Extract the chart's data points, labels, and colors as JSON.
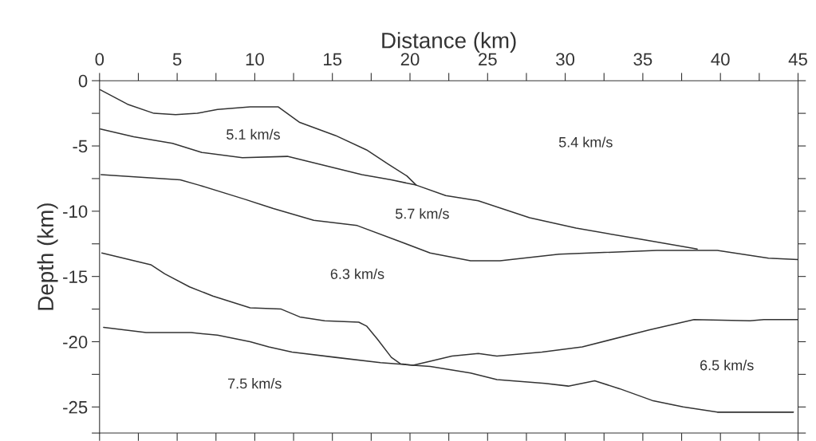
{
  "chart_data": {
    "type": "line",
    "xlabel": "Distance (km)",
    "ylabel": "Depth (km)",
    "xlim": [
      0,
      45
    ],
    "ylim": [
      -27,
      0
    ],
    "xticks": [
      0,
      {
        "value": 2.5,
        "label": null
      },
      5,
      {
        "value": 7.5,
        "label": null
      },
      10,
      {
        "value": 12.5,
        "label": null
      },
      15,
      {
        "value": 17.5,
        "label": null
      },
      20,
      {
        "value": 22.5,
        "label": null
      },
      25,
      {
        "value": 27.5,
        "label": null
      },
      30,
      {
        "value": 32.5,
        "label": null
      },
      35,
      {
        "value": 37.5,
        "label": null
      },
      40,
      {
        "value": 42.5,
        "label": null
      },
      45
    ],
    "yticks": [
      {
        "value": -27,
        "label": null
      },
      -25,
      {
        "value": -22.5,
        "label": null
      },
      -20,
      {
        "value": -17.5,
        "label": null
      },
      -15,
      {
        "value": -12.5,
        "label": null
      },
      -10,
      {
        "value": -7.5,
        "label": null
      },
      -5,
      {
        "value": -2.5,
        "label": null
      },
      0
    ],
    "grid": false,
    "marker": "none",
    "line_style": "solid",
    "series": [
      {
        "color": "#333333",
        "x": [
          0.05,
          1.8,
          3.5,
          4.9,
          6.3,
          7.6,
          9.7,
          11.5,
          12.9,
          15.2,
          17.2,
          18.6,
          19.8,
          20.4
        ],
        "values": [
          -0.7,
          -1.8,
          -2.5,
          -2.6,
          -2.5,
          -2.2,
          -2.0,
          -2.0,
          -3.2,
          -4.2,
          -5.3,
          -6.4,
          -7.3,
          -8.0
        ]
      },
      {
        "color": "#333333",
        "x": [
          0.05,
          2.2,
          4.7,
          6.6,
          9.2,
          12.1,
          14.5,
          16.9,
          18.8,
          20.4,
          22.3,
          24.4,
          27.7,
          30.7,
          35.1,
          38.5
        ],
        "values": [
          -3.7,
          -4.3,
          -4.8,
          -5.5,
          -5.9,
          -5.8,
          -6.5,
          -7.2,
          -7.6,
          -8.0,
          -8.8,
          -9.2,
          -10.5,
          -11.3,
          -12.2,
          -12.9
        ]
      },
      {
        "color": "#333333",
        "x": [
          0.1,
          5.2,
          6.4,
          9.4,
          11.2,
          13.8,
          16.6,
          19.3,
          21.3,
          23.9,
          25.8,
          29.6,
          35.9,
          39.8,
          43.1,
          45
        ],
        "values": [
          -7.2,
          -7.6,
          -8.0,
          -9.1,
          -9.8,
          -10.7,
          -11.1,
          -12.3,
          -13.2,
          -13.8,
          -13.8,
          -13.3,
          -13.0,
          -13.0,
          -13.6,
          -13.7
        ]
      },
      {
        "color": "#333333",
        "x": [
          0.15,
          3.3,
          4.2,
          5.8,
          7.3,
          9.7,
          11.7,
          12.9,
          14.5,
          16.7,
          17.2,
          17.9,
          18.8,
          19.4,
          20.2,
          21.3,
          22.7,
          24.4,
          25.6,
          28.5,
          31.1,
          35.4,
          38.3,
          41.9,
          42.8,
          45
        ],
        "values": [
          -13.2,
          -14.1,
          -14.8,
          -15.8,
          -16.5,
          -17.4,
          -17.5,
          -18.1,
          -18.4,
          -18.5,
          -18.8,
          -19.8,
          -21.2,
          -21.7,
          -21.8,
          -21.5,
          -21.1,
          -20.9,
          -21.1,
          -20.8,
          -20.4,
          -19.1,
          -18.3,
          -18.4,
          -18.3,
          -18.3
        ]
      },
      {
        "color": "#333333",
        "x": [
          0.26,
          3.0,
          5.9,
          7.6,
          9.7,
          10.9,
          12.4,
          15.2,
          18.1,
          20.2,
          21.3,
          23.9,
          25.6,
          28.7,
          30.2,
          31.9,
          33.5,
          35.6,
          37.6,
          39.8,
          44.7
        ],
        "values": [
          -18.9,
          -19.3,
          -19.3,
          -19.5,
          -20.0,
          -20.4,
          -20.8,
          -21.2,
          -21.6,
          -21.8,
          -21.9,
          -22.4,
          -22.9,
          -23.2,
          -23.4,
          -23.0,
          -23.6,
          -24.5,
          -25.0,
          -25.4,
          -25.4
        ]
      }
    ],
    "annotations": [
      "5.1 km/s",
      "5.4 km/s",
      "5.7 km/s",
      "6.3 km/s",
      "6.5 km/s",
      "7.5 km/s"
    ]
  }
}
